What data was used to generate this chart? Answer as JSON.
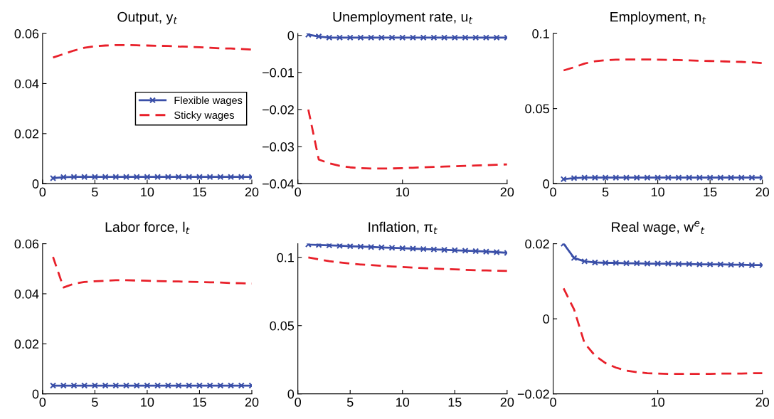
{
  "chart_data": [
    {
      "type": "line",
      "title": "Output, y$_{t}$",
      "x": [
        1,
        2,
        3,
        4,
        5,
        6,
        7,
        8,
        9,
        10,
        11,
        12,
        13,
        14,
        15,
        16,
        17,
        18,
        19,
        20
      ],
      "xlim": [
        0,
        20
      ],
      "xticks": [
        0,
        5,
        10,
        15,
        20
      ],
      "ylim": [
        0,
        0.06
      ],
      "yticks": [
        {
          "value": 0,
          "label": "0"
        },
        0.02,
        0.04,
        0.06
      ],
      "legend": "center right",
      "grid": false,
      "series": [
        {
          "name": "Flexible wages",
          "color": "#3a4fa8",
          "marker": "cross",
          "line_style": "solid",
          "values": [
            0.0022,
            0.0026,
            0.0027,
            0.0027,
            0.0027,
            0.0027,
            0.0027,
            0.0027,
            0.0027,
            0.0027,
            0.0027,
            0.0027,
            0.0027,
            0.0027,
            0.0027,
            0.0027,
            0.0027,
            0.0027,
            0.0027,
            0.0027
          ]
        },
        {
          "name": "Sticky wages",
          "color": "#e8202a",
          "marker": "none",
          "line_style": "dashed",
          "values": [
            0.0504,
            0.0518,
            0.0532,
            0.0543,
            0.0549,
            0.0552,
            0.0554,
            0.0554,
            0.0553,
            0.0552,
            0.0551,
            0.055,
            0.0548,
            0.0547,
            0.0545,
            0.0543,
            0.0541,
            0.054,
            0.0538,
            0.0536
          ]
        }
      ]
    },
    {
      "type": "line",
      "title": "Unemployment rate, u$_{t}$",
      "x": [
        1,
        2,
        3,
        4,
        5,
        6,
        7,
        8,
        9,
        10,
        11,
        12,
        13,
        14,
        15,
        16,
        17,
        18,
        19,
        20
      ],
      "xlim": [
        0,
        20
      ],
      "xticks": [
        0,
        10,
        20
      ],
      "ylim": [
        -0.04,
        0.0005
      ],
      "yticks": [
        {
          "value": -0.04,
          "label": "−0.04"
        },
        {
          "value": -0.03,
          "label": "−0.03"
        },
        {
          "value": -0.02,
          "label": "−0.02"
        },
        {
          "value": -0.01,
          "label": "−0.01"
        },
        {
          "value": 0,
          "label": "0"
        }
      ],
      "grid": false,
      "series": [
        {
          "color": "#3a4fa8",
          "marker": "cross",
          "line_style": "solid",
          "values": [
            0.0002,
            -0.0003,
            -0.0006,
            -0.0006,
            -0.0006,
            -0.0006,
            -0.0006,
            -0.0006,
            -0.0006,
            -0.0006,
            -0.0006,
            -0.0006,
            -0.0006,
            -0.0006,
            -0.0006,
            -0.0006,
            -0.0006,
            -0.0006,
            -0.0006,
            -0.0006
          ]
        },
        {
          "color": "#e8202a",
          "marker": "none",
          "line_style": "dashed",
          "values": [
            -0.02,
            -0.0335,
            -0.0345,
            -0.0352,
            -0.0356,
            -0.0358,
            -0.0359,
            -0.0359,
            -0.0359,
            -0.0358,
            -0.0357,
            -0.0356,
            -0.0355,
            -0.0354,
            -0.0353,
            -0.0352,
            -0.0351,
            -0.035,
            -0.0349,
            -0.0348
          ]
        }
      ]
    },
    {
      "type": "line",
      "title": "Employment, n$_{t}$",
      "x": [
        1,
        2,
        3,
        4,
        5,
        6,
        7,
        8,
        9,
        10,
        11,
        12,
        13,
        14,
        15,
        16,
        17,
        18,
        19,
        20
      ],
      "xlim": [
        0,
        20
      ],
      "xticks": [
        0,
        5,
        10,
        15,
        20
      ],
      "ylim": [
        0,
        0.1
      ],
      "yticks": [
        {
          "value": 0,
          "label": "0"
        },
        0.05,
        0.1
      ],
      "grid": false,
      "series": [
        {
          "color": "#3a4fa8",
          "marker": "cross",
          "line_style": "solid",
          "values": [
            0.003,
            0.0037,
            0.004,
            0.004,
            0.004,
            0.004,
            0.004,
            0.004,
            0.004,
            0.004,
            0.004,
            0.004,
            0.004,
            0.004,
            0.004,
            0.004,
            0.004,
            0.004,
            0.004,
            0.004
          ]
        },
        {
          "color": "#e8202a",
          "marker": "none",
          "line_style": "dashed",
          "values": [
            0.0754,
            0.0775,
            0.08,
            0.0815,
            0.0822,
            0.0826,
            0.0827,
            0.0827,
            0.0827,
            0.0826,
            0.0825,
            0.0823,
            0.0821,
            0.0819,
            0.0817,
            0.0815,
            0.0813,
            0.0811,
            0.0808,
            0.0803
          ]
        }
      ]
    },
    {
      "type": "line",
      "title": "Labor force, l$_{t}$",
      "x": [
        1,
        2,
        3,
        4,
        5,
        6,
        7,
        8,
        9,
        10,
        11,
        12,
        13,
        14,
        15,
        16,
        17,
        18,
        19,
        20
      ],
      "xlim": [
        0,
        20
      ],
      "xticks": [
        0,
        5,
        10,
        15,
        20
      ],
      "ylim": [
        0,
        0.06
      ],
      "yticks": [
        {
          "value": 0,
          "label": "0"
        },
        0.02,
        0.04,
        0.06
      ],
      "grid": false,
      "series": [
        {
          "color": "#3a4fa8",
          "marker": "cross",
          "line_style": "solid",
          "values": [
            0.0033,
            0.0033,
            0.0033,
            0.0033,
            0.0033,
            0.0033,
            0.0033,
            0.0033,
            0.0033,
            0.0033,
            0.0033,
            0.0033,
            0.0033,
            0.0033,
            0.0033,
            0.0033,
            0.0033,
            0.0033,
            0.0033,
            0.0033
          ]
        },
        {
          "color": "#e8202a",
          "marker": "none",
          "line_style": "dashed",
          "values": [
            0.0547,
            0.0425,
            0.044,
            0.0447,
            0.045,
            0.0452,
            0.0454,
            0.0454,
            0.0453,
            0.0452,
            0.0451,
            0.045,
            0.0449,
            0.0448,
            0.0447,
            0.0446,
            0.0445,
            0.0443,
            0.0442,
            0.0441
          ]
        }
      ]
    },
    {
      "type": "line",
      "title": "Inflation, π$_{t}$",
      "x": [
        1,
        2,
        3,
        4,
        5,
        6,
        7,
        8,
        9,
        10,
        11,
        12,
        13,
        14,
        15,
        16,
        17,
        18,
        19,
        20
      ],
      "xlim": [
        0,
        20
      ],
      "xticks": [
        0,
        5,
        10,
        15,
        20
      ],
      "ylim": [
        0,
        0.11
      ],
      "yticks": [
        {
          "value": 0,
          "label": "0"
        },
        0.05,
        0.1
      ],
      "grid": false,
      "series": [
        {
          "color": "#3a4fa8",
          "marker": "cross",
          "line_style": "solid",
          "values": [
            0.1095,
            0.1091,
            0.1088,
            0.1085,
            0.1082,
            0.1079,
            0.1076,
            0.1073,
            0.107,
            0.1067,
            0.1064,
            0.1061,
            0.1058,
            0.1055,
            0.1052,
            0.1049,
            0.1046,
            0.1042,
            0.1038,
            0.1033
          ]
        },
        {
          "color": "#e8202a",
          "marker": "none",
          "line_style": "dashed",
          "values": [
            0.1,
            0.0985,
            0.0972,
            0.0963,
            0.0955,
            0.0948,
            0.0943,
            0.0938,
            0.0933,
            0.0929,
            0.0925,
            0.0921,
            0.0918,
            0.0915,
            0.0912,
            0.0909,
            0.0906,
            0.0904,
            0.0902,
            0.09
          ]
        }
      ]
    },
    {
      "type": "line",
      "title": "Real wage, w$^{e}$$_{t}$",
      "x": [
        1,
        2,
        3,
        4,
        5,
        6,
        7,
        8,
        9,
        10,
        11,
        12,
        13,
        14,
        15,
        16,
        17,
        18,
        19,
        20
      ],
      "xlim": [
        0,
        20
      ],
      "xticks": [
        0,
        10,
        20
      ],
      "ylim": [
        -0.02,
        0.02
      ],
      "yticks": [
        {
          "value": -0.02,
          "label": "−0.02"
        },
        {
          "value": 0,
          "label": "0"
        },
        0.02
      ],
      "grid": false,
      "series": [
        {
          "color": "#3a4fa8",
          "marker": "cross",
          "line_style": "solid",
          "values": [
            0.02,
            0.0162,
            0.0153,
            0.015,
            0.0149,
            0.0149,
            0.0148,
            0.0148,
            0.0147,
            0.0147,
            0.0147,
            0.0146,
            0.0146,
            0.0145,
            0.0145,
            0.0145,
            0.0144,
            0.0144,
            0.0143,
            0.0143
          ]
        },
        {
          "color": "#e8202a",
          "marker": "none",
          "line_style": "dashed",
          "values": [
            0.0081,
            0.0025,
            -0.0065,
            -0.0098,
            -0.0118,
            -0.013,
            -0.0138,
            -0.0142,
            -0.0145,
            -0.0146,
            -0.0147,
            -0.0147,
            -0.0147,
            -0.0147,
            -0.0147,
            -0.0146,
            -0.0146,
            -0.0146,
            -0.0145,
            -0.0145
          ]
        }
      ]
    }
  ]
}
